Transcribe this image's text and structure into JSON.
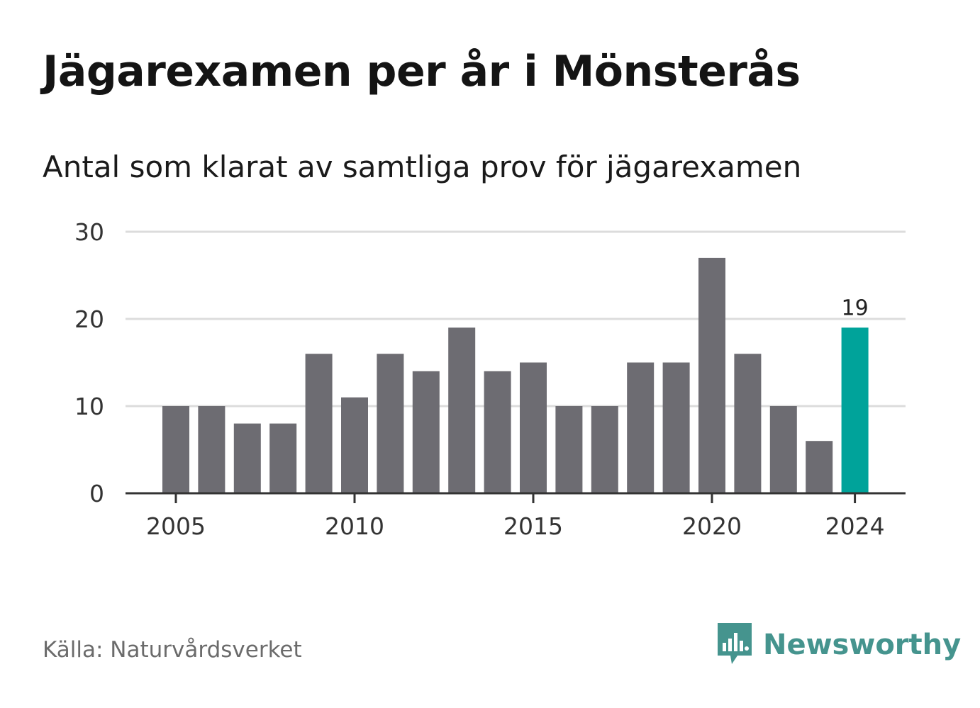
{
  "title": "Jägarexamen per år i Mönsterås",
  "subtitle": "Antal som klarat av samtliga prov för jägarexamen",
  "source": "Källa: Naturvårdsverket",
  "brand": {
    "name": "Newsworthy",
    "logo_icon": "bar-chart-speech-bubble-icon",
    "color": "#45948e"
  },
  "colors": {
    "bar": "#6d6c72",
    "highlight": "#00a39a",
    "grid": "#dcdcdc",
    "axis": "#333333"
  },
  "chart_data": {
    "type": "bar",
    "title": "Jägarexamen per år i Mönsterås",
    "subtitle": "Antal som klarat av samtliga prov för jägarexamen",
    "categories": [
      2005,
      2006,
      2007,
      2008,
      2009,
      2010,
      2011,
      2012,
      2013,
      2014,
      2015,
      2016,
      2017,
      2018,
      2019,
      2020,
      2021,
      2022,
      2023,
      2024
    ],
    "values": [
      10,
      10,
      8,
      8,
      16,
      11,
      16,
      14,
      19,
      14,
      15,
      10,
      10,
      15,
      15,
      27,
      16,
      10,
      6,
      19
    ],
    "highlight_index": 19,
    "highlight_label": "19",
    "ylim": [
      0,
      30
    ],
    "yticks": [
      "0",
      "10",
      "20",
      "30"
    ],
    "xticks": [
      "2005",
      "2010",
      "2015",
      "2020",
      "2024"
    ],
    "grid": true,
    "xlabel": "",
    "ylabel": ""
  }
}
